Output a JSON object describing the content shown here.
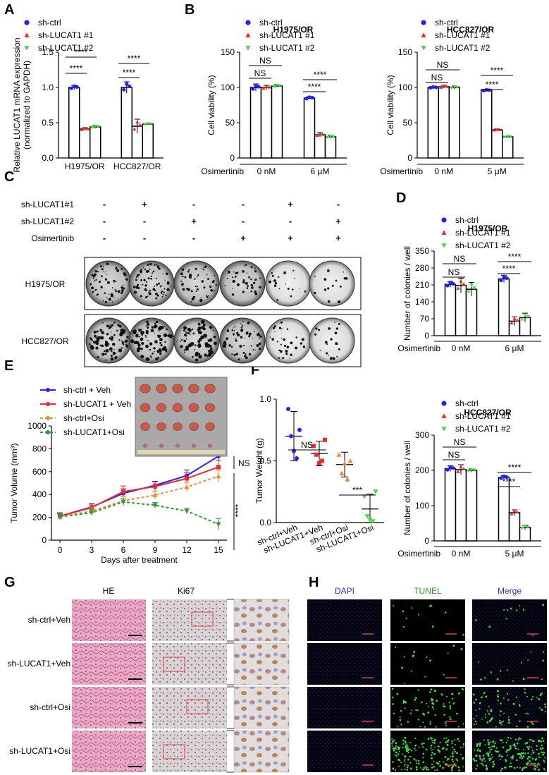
{
  "panel_letters": [
    "A",
    "B",
    "C",
    "D",
    "E",
    "F",
    "G",
    "H"
  ],
  "legend3": {
    "ctrl": "sh-ctrl",
    "kd1": "sh-LUCAT1 #1",
    "kd2": "sh-LUCAT1 #2"
  },
  "colors": {
    "blue": "#1f1fff",
    "red": "#ee2a2a",
    "green": "#44dd44",
    "orange": "#f08a30",
    "darkgreen": "#2a9a2a",
    "purple": "#7d2fc6"
  },
  "stats": {
    "ns": "NS",
    "p4": "****",
    "p3": "***"
  },
  "treatment_label": "Osimertinib",
  "chart_data": [
    {
      "id": "A",
      "type": "bar",
      "ylabel": "Relative LUCAT1 mRNA expression\n(normalized to GAPDH)",
      "ylabel_lines": [
        "Relative LUCAT1 mRNA expression",
        "(normalized to GAPDH)"
      ],
      "ylim": [
        0,
        1.5
      ],
      "yticks": [
        "0.0",
        "0.5",
        "1.0",
        "1.5"
      ],
      "categories": [
        "H1975/OR",
        "HCC827/OR"
      ],
      "series": [
        {
          "name": "sh-ctrl",
          "values": [
            1.0,
            1.0
          ],
          "err": [
            0.03,
            0.08
          ]
        },
        {
          "name": "sh-LUCAT1 #1",
          "values": [
            0.41,
            0.45
          ],
          "err": [
            0.02,
            0.1
          ]
        },
        {
          "name": "sh-LUCAT1 #2",
          "values": [
            0.44,
            0.48
          ],
          "err": [
            0.02,
            0.01
          ]
        }
      ]
    },
    {
      "id": "B1",
      "type": "bar",
      "title": "H1975/OR",
      "ylabel": "Cell viability (%)",
      "ylim": [
        0,
        150
      ],
      "yticks": [
        "0",
        "50",
        "100",
        "150"
      ],
      "categories": [
        "0 nM",
        "6 μM"
      ],
      "series": [
        {
          "name": "sh-ctrl",
          "values": [
            100,
            85
          ],
          "err": [
            5,
            2
          ]
        },
        {
          "name": "sh-LUCAT1 #1",
          "values": [
            100,
            33
          ],
          "err": [
            3,
            3
          ]
        },
        {
          "name": "sh-LUCAT1 #2",
          "values": [
            102,
            30
          ],
          "err": [
            2,
            2
          ]
        }
      ]
    },
    {
      "id": "B2",
      "type": "bar",
      "title": "HCC827/OR",
      "ylabel": "Cell viability (%)",
      "ylim": [
        0,
        150
      ],
      "yticks": [
        "0",
        "50",
        "100",
        "150"
      ],
      "categories": [
        "0 nM",
        "5 μM"
      ],
      "series": [
        {
          "name": "sh-ctrl",
          "values": [
            100,
            96
          ],
          "err": [
            1,
            1
          ]
        },
        {
          "name": "sh-LUCAT1 #1",
          "values": [
            101,
            40
          ],
          "err": [
            2,
            1
          ]
        },
        {
          "name": "sh-LUCAT1 #2",
          "values": [
            100,
            30
          ],
          "err": [
            2,
            1
          ]
        }
      ]
    },
    {
      "id": "D1",
      "type": "bar",
      "title": "H1975/OR",
      "ylabel": "Number of colonies / well",
      "ylim": [
        0,
        350
      ],
      "yticks": [
        "0",
        "70",
        "140",
        "210",
        "280",
        "350"
      ],
      "categories": [
        "0 nM",
        "6 μM"
      ],
      "series": [
        {
          "name": "sh-ctrl",
          "values": [
            212,
            235
          ],
          "err": [
            12,
            15
          ]
        },
        {
          "name": "sh-LUCAT1 #1",
          "values": [
            208,
            60
          ],
          "err": [
            30,
            18
          ]
        },
        {
          "name": "sh-LUCAT1 #2",
          "values": [
            192,
            75
          ],
          "err": [
            28,
            18
          ]
        }
      ]
    },
    {
      "id": "D2",
      "type": "bar",
      "title": "HCC827/OR",
      "ylabel": "Number of colonies / well",
      "ylim": [
        0,
        300
      ],
      "yticks": [
        "0",
        "100",
        "200",
        "300"
      ],
      "categories": [
        "0 nM",
        "5 μM"
      ],
      "series": [
        {
          "name": "sh-ctrl",
          "values": [
            205,
            180
          ],
          "err": [
            8,
            5
          ]
        },
        {
          "name": "sh-LUCAT1 #1",
          "values": [
            202,
            80
          ],
          "err": [
            14,
            8
          ]
        },
        {
          "name": "sh-LUCAT1 #2",
          "values": [
            200,
            38
          ],
          "err": [
            4,
            6
          ]
        }
      ]
    },
    {
      "id": "E",
      "type": "line",
      "ylabel": "Tumor Volume  (mm³)",
      "xlabel": "Days after treatment",
      "x": [
        0,
        3,
        6,
        9,
        12,
        15
      ],
      "ylim": [
        0,
        1000
      ],
      "yticks": [
        "0",
        "200",
        "400",
        "600",
        "800",
        "1000"
      ],
      "xticks": [
        "0",
        "3",
        "6",
        "9",
        "12",
        "15"
      ],
      "series": [
        {
          "name": "sh-ctrl + Veh",
          "values": [
            210,
            290,
            410,
            480,
            565,
            735
          ],
          "err": [
            30,
            30,
            40,
            35,
            50,
            60
          ]
        },
        {
          "name": "sh-LUCAT1 + Veh",
          "values": [
            210,
            285,
            425,
            470,
            540,
            640
          ],
          "err": [
            25,
            30,
            50,
            40,
            50,
            55
          ]
        },
        {
          "name": "sh-ctrl+Osi",
          "values": [
            205,
            255,
            345,
            395,
            465,
            560
          ],
          "err": [
            25,
            30,
            35,
            35,
            40,
            55
          ]
        },
        {
          "name": "sh-LUCAT1+Osi",
          "values": [
            205,
            240,
            335,
            305,
            255,
            140
          ],
          "err": [
            25,
            25,
            30,
            25,
            25,
            50
          ]
        }
      ]
    },
    {
      "id": "F",
      "type": "scatter",
      "ylabel": "Tumor Weight (g)",
      "ylim": [
        0,
        1.0
      ],
      "yticks": [
        "0.0",
        "0.5",
        "1.0"
      ],
      "categories": [
        "sh-ctrl+Veh",
        "sh-LUCAT1+Veh",
        "sh-ctrl+Osi",
        "sh-LUCAT1+Osi"
      ],
      "means": [
        0.7,
        0.56,
        0.47,
        0.11
      ],
      "err": [
        0.2,
        0.1,
        0.1,
        0.12
      ],
      "points": [
        [
          0.92,
          0.7,
          0.58,
          0.52,
          0.75
        ],
        [
          0.62,
          0.55,
          0.48,
          0.5,
          0.67
        ],
        [
          0.55,
          0.4,
          0.48,
          0.35,
          0.5
        ],
        [
          0.21,
          0.05,
          0.02,
          0.01,
          0.25
        ]
      ]
    }
  ],
  "panelC": {
    "rows": [
      "sh-LUCAT1#1",
      "sh-LUCAT1#2",
      "Osimertinib"
    ],
    "signs": [
      [
        "-",
        "+",
        "-",
        "-",
        "+",
        "-"
      ],
      [
        "-",
        "-",
        "+",
        "-",
        "-",
        "+"
      ],
      [
        "-",
        "-",
        "-",
        "+",
        "+",
        "+"
      ]
    ],
    "plates": [
      "H1975/OR",
      "HCC827/OR"
    ]
  },
  "panelG": {
    "cols": [
      "HE",
      "Ki67"
    ],
    "rows": [
      "sh-ctrl+Veh",
      "sh-LUCAT1+Veh",
      "sh-ctrl+Osi",
      "sh-LUCAT1+Osi"
    ]
  },
  "panelH": {
    "cols": [
      "DAPI",
      "TUNEL",
      "Merge"
    ]
  }
}
